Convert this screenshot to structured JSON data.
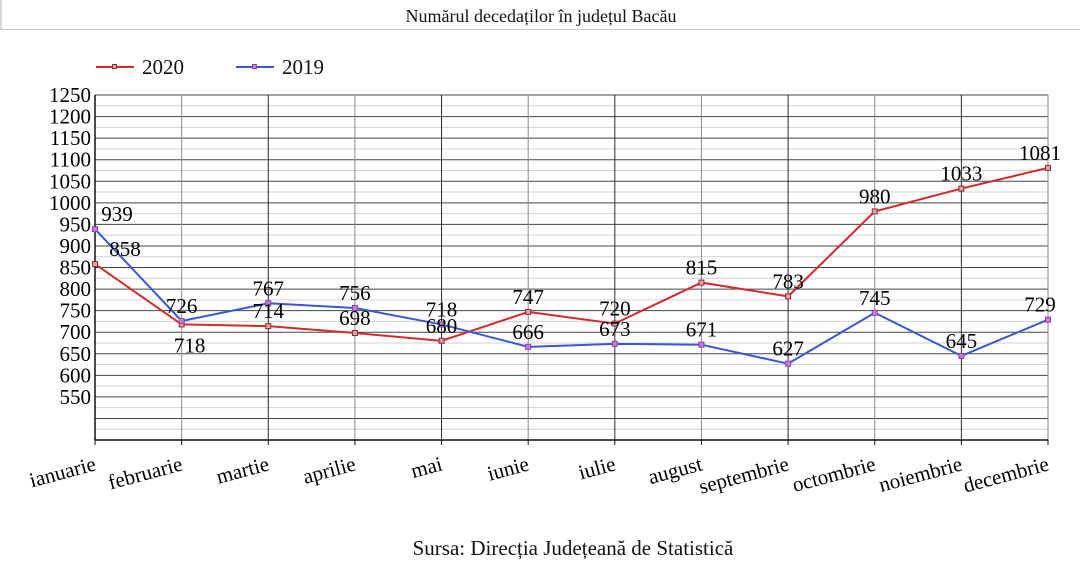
{
  "chart_data": {
    "type": "line",
    "title": "Numărul decedaților în județul Bacău",
    "source": "Sursa: Direcția Județeană de Statistică",
    "xlabel": "",
    "ylabel": "",
    "categories": [
      "ianuarie",
      "februarie",
      "martie",
      "aprilie",
      "mai",
      "iunie",
      "iulie",
      "august",
      "septembrie",
      "octombrie",
      "noiembrie",
      "decembrie"
    ],
    "series": [
      {
        "name": "2020",
        "color": "#d42a2a",
        "marker_color": "#8a2a3a",
        "values": [
          858,
          718,
          714,
          698,
          680,
          747,
          720,
          815,
          783,
          980,
          1033,
          1081
        ]
      },
      {
        "name": "2019",
        "color": "#3a57d4",
        "marker_color": "#9a3ab0",
        "values": [
          939,
          726,
          767,
          756,
          718,
          666,
          673,
          671,
          627,
          745,
          645,
          729
        ]
      }
    ],
    "ylim": [
      450,
      1250
    ],
    "yticks": [
      550,
      600,
      650,
      700,
      750,
      800,
      850,
      900,
      950,
      1000,
      1050,
      1100,
      1150,
      1200,
      1250
    ],
    "grid": true,
    "legend_position": "top-left"
  }
}
